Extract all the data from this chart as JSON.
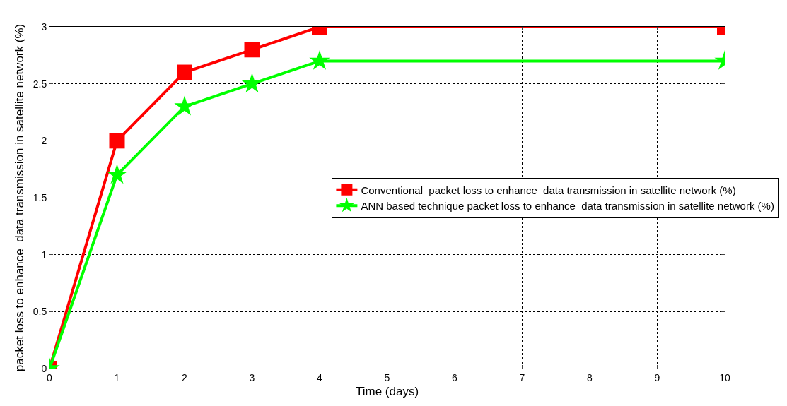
{
  "chart_data": {
    "type": "line",
    "xlabel": "Time (days)",
    "ylabel": "packet loss to enhance  data transmission in satellite network (%)",
    "x": [
      0,
      1,
      2,
      3,
      4,
      10
    ],
    "series": [
      {
        "name": "Conventional  packet loss to enhance  data transmission in satellite network (%)",
        "color": "#ff0000",
        "marker": "square",
        "values": [
          0,
          2,
          2.6,
          2.8,
          3,
          3
        ]
      },
      {
        "name": "ANN based technique packet loss to enhance  data transmission in satellite network (%)",
        "color": "#00ff00",
        "marker": "star",
        "values": [
          0,
          1.7,
          2.3,
          2.5,
          2.7,
          2.7
        ]
      }
    ],
    "xlim": [
      0,
      10
    ],
    "xticks": [
      0,
      1,
      2,
      3,
      4,
      5,
      6,
      7,
      8,
      9,
      10
    ],
    "ylim": [
      0,
      3
    ],
    "yticks": [
      0,
      0.5,
      1,
      1.5,
      2,
      2.5,
      3
    ],
    "grid": true,
    "legend": "right",
    "line_style": "solid"
  }
}
